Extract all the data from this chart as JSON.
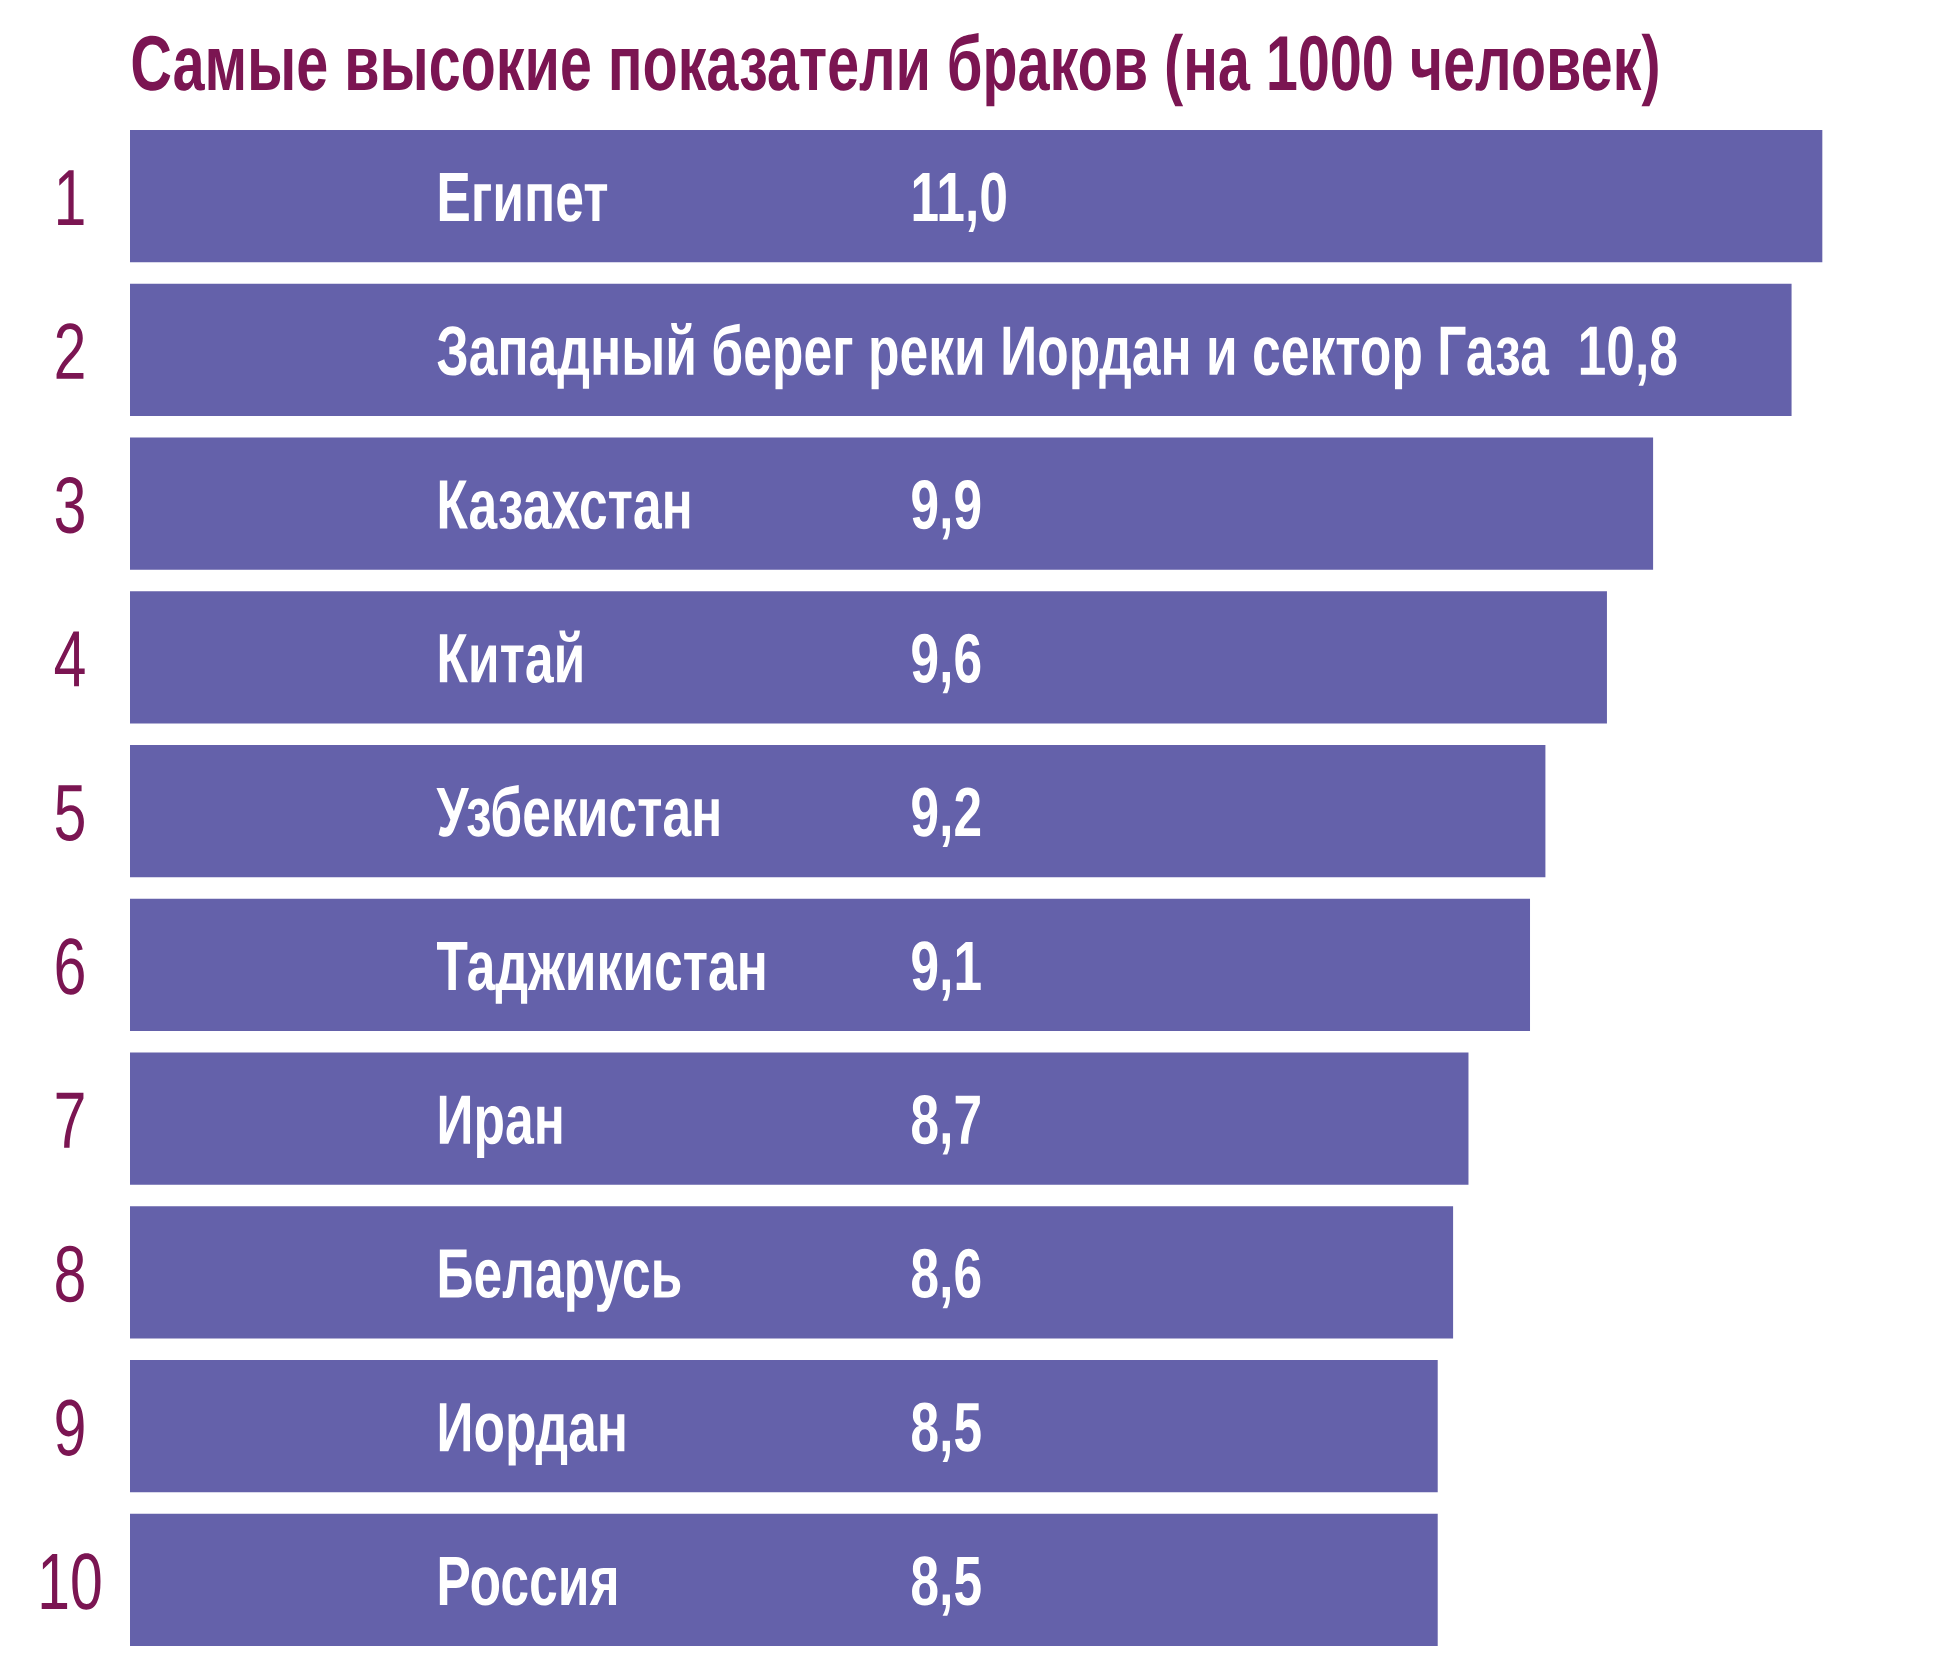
{
  "chart_data": {
    "type": "bar",
    "orientation": "horizontal",
    "title": "Самые высокие показатели браков (на 1000 человек)",
    "categories": [
      "Египет",
      "Западный берег реки Иордан и сектор Газа",
      "Казахстан",
      "Китай",
      "Узбекистан",
      "Таджикистан",
      "Иран",
      "Беларусь",
      "Иордан",
      "Россия"
    ],
    "values": [
      11.0,
      10.8,
      9.9,
      9.6,
      9.2,
      9.1,
      8.7,
      8.6,
      8.5,
      8.5
    ],
    "value_labels": [
      "11,0",
      "10,8",
      "9,9",
      "9,6",
      "9,2",
      "9,1",
      "8,7",
      "8,6",
      "8,5",
      "8,5"
    ],
    "color": "#6461aa",
    "annotations": [
      "1",
      "2",
      "3",
      "4",
      "5",
      "6",
      "7",
      "8",
      "9",
      "10"
    ]
  }
}
